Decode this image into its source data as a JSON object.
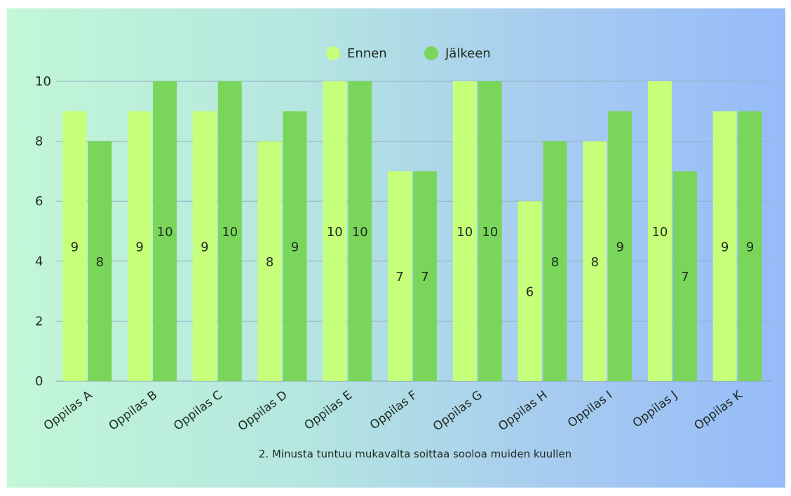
{
  "chart_data": {
    "type": "bar",
    "xlabel": "2. Minusta tuntuu mukavalta soittaa sooloa muiden kuullen",
    "ylabel": "",
    "ylim": [
      0,
      10
    ],
    "yticks": [
      0,
      2,
      4,
      6,
      8,
      10
    ],
    "grid": true,
    "legend_position": "top-center",
    "categories": [
      "Oppilas A",
      "Oppilas B",
      "Oppilas C",
      "Oppilas D",
      "Oppilas E",
      "Oppilas F",
      "Oppilas G",
      "Oppilas H",
      "Oppilas I",
      "Oppilas J",
      "Oppilas K"
    ],
    "series": [
      {
        "name": "Ennen",
        "color": "#c6ff7a",
        "values": [
          9,
          9,
          9,
          8,
          10,
          7,
          10,
          6,
          8,
          10,
          9
        ]
      },
      {
        "name": "Jälkeen",
        "color": "#7ad65a",
        "values": [
          8,
          10,
          10,
          9,
          10,
          7,
          10,
          8,
          9,
          7,
          9
        ]
      }
    ]
  }
}
